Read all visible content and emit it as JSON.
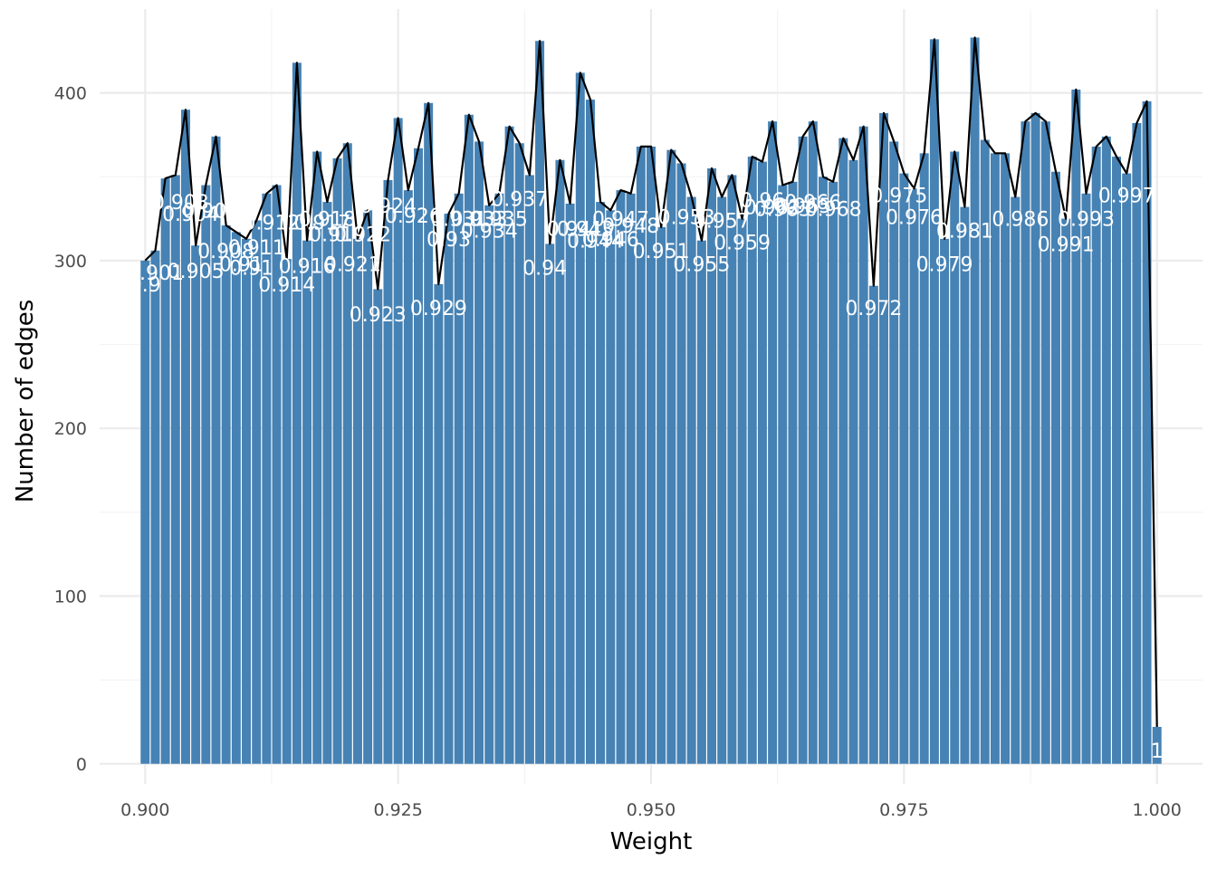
{
  "chart_data": {
    "type": "bar",
    "xlabel": "Weight",
    "ylabel": "Number of edges",
    "xlim": [
      0.8955,
      1.0045
    ],
    "ylim": [
      -12,
      450
    ],
    "xticks": [
      0.9,
      0.925,
      0.95,
      0.975,
      1.0
    ],
    "xtick_labels": [
      "0.900",
      "0.925",
      "0.950",
      "0.975",
      "1.000"
    ],
    "yticks": [
      0,
      100,
      200,
      300,
      400
    ],
    "ytick_labels": [
      "0",
      "100",
      "200",
      "300",
      "400"
    ],
    "grid": true,
    "legend": "none",
    "bar_color": "#4682b4",
    "line_color": "#000000",
    "label_color": "#ffffff",
    "grid_major_color": "#ebebeb",
    "grid_minor_color": "#f4f4f4",
    "x": [
      0.9,
      0.901,
      0.902,
      0.903,
      0.904,
      0.905,
      0.906,
      0.907,
      0.908,
      0.909,
      0.91,
      0.911,
      0.912,
      0.913,
      0.914,
      0.915,
      0.916,
      0.917,
      0.918,
      0.919,
      0.92,
      0.921,
      0.922,
      0.923,
      0.924,
      0.925,
      0.926,
      0.927,
      0.928,
      0.929,
      0.93,
      0.931,
      0.932,
      0.933,
      0.934,
      0.935,
      0.936,
      0.937,
      0.938,
      0.939,
      0.94,
      0.941,
      0.942,
      0.943,
      0.944,
      0.945,
      0.946,
      0.947,
      0.948,
      0.949,
      0.95,
      0.951,
      0.952,
      0.953,
      0.954,
      0.955,
      0.956,
      0.957,
      0.958,
      0.959,
      0.96,
      0.961,
      0.962,
      0.963,
      0.964,
      0.965,
      0.966,
      0.967,
      0.968,
      0.969,
      0.97,
      0.971,
      0.972,
      0.973,
      0.974,
      0.975,
      0.976,
      0.977,
      0.978,
      0.979,
      0.98,
      0.981,
      0.982,
      0.983,
      0.984,
      0.985,
      0.986,
      0.987,
      0.988,
      0.989,
      0.99,
      0.991,
      0.992,
      0.993,
      0.994,
      0.995,
      0.996,
      0.997,
      0.998,
      0.999,
      1.0
    ],
    "values": [
      300,
      306,
      349,
      351,
      390,
      309,
      345,
      374,
      321,
      317,
      313,
      324,
      340,
      345,
      301,
      418,
      312,
      365,
      335,
      361,
      370,
      313,
      330,
      283,
      348,
      385,
      342,
      367,
      394,
      286,
      328,
      340,
      387,
      371,
      333,
      340,
      380,
      370,
      351,
      431,
      310,
      360,
      334,
      412,
      396,
      335,
      330,
      342,
      340,
      368,
      368,
      320,
      366,
      358,
      338,
      312,
      355,
      338,
      351,
      325,
      362,
      359,
      383,
      345,
      347,
      374,
      383,
      350,
      347,
      373,
      360,
      380,
      285,
      388,
      371,
      352,
      343,
      364,
      432,
      313,
      365,
      332,
      433,
      372,
      364,
      364,
      338,
      383,
      388,
      383,
      353,
      325,
      402,
      340,
      368,
      374,
      362,
      352,
      382,
      395,
      22
    ],
    "labels": [
      {
        "text": "0.9",
        "x": 0.9,
        "y": 286
      },
      {
        "text": "0.901",
        "x": 0.901,
        "y": 293
      },
      {
        "text": "0.903",
        "x": 0.9035,
        "y": 335
      },
      {
        "text": "0.904",
        "x": 0.9045,
        "y": 328
      },
      {
        "text": "0.905",
        "x": 0.905,
        "y": 294
      },
      {
        "text": "0.906",
        "x": 0.9065,
        "y": 330
      },
      {
        "text": "0.908",
        "x": 0.908,
        "y": 306
      },
      {
        "text": "0.91",
        "x": 0.9095,
        "y": 298
      },
      {
        "text": "0.91",
        "x": 0.9105,
        "y": 296
      },
      {
        "text": "0.911",
        "x": 0.911,
        "y": 308
      },
      {
        "text": "0.912",
        "x": 0.9125,
        "y": 323
      },
      {
        "text": "0.914",
        "x": 0.914,
        "y": 286
      },
      {
        "text": "0.916",
        "x": 0.916,
        "y": 297
      },
      {
        "text": "0.917",
        "x": 0.9175,
        "y": 323
      },
      {
        "text": "0.918",
        "x": 0.918,
        "y": 325
      },
      {
        "text": "0.919",
        "x": 0.919,
        "y": 316
      },
      {
        "text": "0.921",
        "x": 0.9205,
        "y": 298
      },
      {
        "text": "0.922",
        "x": 0.9215,
        "y": 316
      },
      {
        "text": "0.923",
        "x": 0.923,
        "y": 268
      },
      {
        "text": "0.924",
        "x": 0.924,
        "y": 333
      },
      {
        "text": "0.926",
        "x": 0.9265,
        "y": 327
      },
      {
        "text": "0.929",
        "x": 0.929,
        "y": 272
      },
      {
        "text": "0.93",
        "x": 0.93,
        "y": 313
      },
      {
        "text": "0.931",
        "x": 0.931,
        "y": 325
      },
      {
        "text": "0.933",
        "x": 0.933,
        "y": 325
      },
      {
        "text": "0.934",
        "x": 0.934,
        "y": 318
      },
      {
        "text": "0.935",
        "x": 0.935,
        "y": 325
      },
      {
        "text": "0.937",
        "x": 0.937,
        "y": 337
      },
      {
        "text": "0.94",
        "x": 0.9395,
        "y": 296
      },
      {
        "text": "0.941",
        "x": 0.9425,
        "y": 319
      },
      {
        "text": "0.943",
        "x": 0.9435,
        "y": 319
      },
      {
        "text": "0.944",
        "x": 0.9445,
        "y": 312
      },
      {
        "text": "0.946",
        "x": 0.946,
        "y": 313
      },
      {
        "text": "0.947",
        "x": 0.947,
        "y": 325
      },
      {
        "text": "0.948",
        "x": 0.948,
        "y": 321
      },
      {
        "text": "0.951",
        "x": 0.951,
        "y": 306
      },
      {
        "text": "0.953",
        "x": 0.9535,
        "y": 326
      },
      {
        "text": "0.955",
        "x": 0.955,
        "y": 298
      },
      {
        "text": "0.957",
        "x": 0.957,
        "y": 324
      },
      {
        "text": "0.959",
        "x": 0.959,
        "y": 311
      },
      {
        "text": "0.96",
        "x": 0.961,
        "y": 336
      },
      {
        "text": "0.962",
        "x": 0.962,
        "y": 332
      },
      {
        "text": "0.963",
        "x": 0.963,
        "y": 331
      },
      {
        "text": "0.965",
        "x": 0.965,
        "y": 333
      },
      {
        "text": "0.966",
        "x": 0.966,
        "y": 335
      },
      {
        "text": "0.968",
        "x": 0.968,
        "y": 331
      },
      {
        "text": "0.972",
        "x": 0.972,
        "y": 272
      },
      {
        "text": "0.975",
        "x": 0.9745,
        "y": 339
      },
      {
        "text": "0.976",
        "x": 0.976,
        "y": 326
      },
      {
        "text": "0.979",
        "x": 0.979,
        "y": 298
      },
      {
        "text": "0.981",
        "x": 0.981,
        "y": 318
      },
      {
        "text": "0.986",
        "x": 0.9865,
        "y": 325
      },
      {
        "text": "0.991",
        "x": 0.991,
        "y": 310
      },
      {
        "text": "0.993",
        "x": 0.993,
        "y": 325
      },
      {
        "text": "0.997",
        "x": 0.997,
        "y": 339
      },
      {
        "text": "1",
        "x": 1.0,
        "y": 8
      }
    ]
  }
}
